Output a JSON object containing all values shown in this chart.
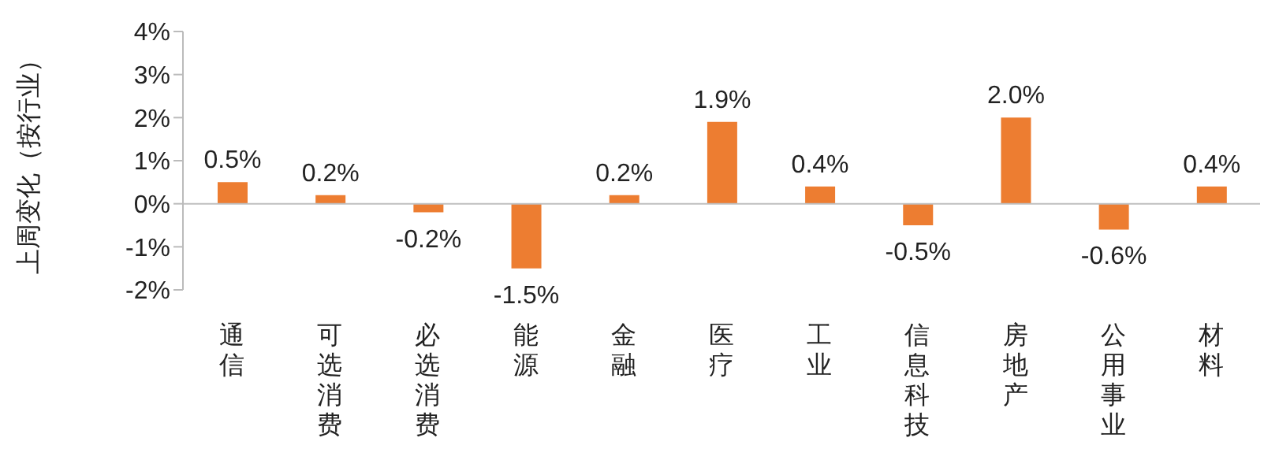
{
  "chart_data": {
    "type": "bar",
    "ylabel": "上周变化（按行业）",
    "categories": [
      "通信",
      "可选消费",
      "必选消费",
      "能源",
      "金融",
      "医疗",
      "工业",
      "信息科技",
      "房地产",
      "公用事业",
      "材料"
    ],
    "values": [
      0.5,
      0.2,
      -0.2,
      -1.5,
      0.2,
      1.9,
      0.4,
      -0.5,
      2.0,
      -0.6,
      0.4
    ],
    "value_labels": [
      "0.5%",
      "0.2%",
      "-0.2%",
      "-1.5%",
      "0.2%",
      "1.9%",
      "0.4%",
      "-0.5%",
      "2.0%",
      "-0.6%",
      "0.4%"
    ],
    "color": "#ed7d31",
    "ylim": [
      -2,
      4
    ],
    "yticks": [
      {
        "value": -2,
        "label": "-2%"
      },
      {
        "value": -1,
        "label": "-1%"
      },
      {
        "value": 0,
        "label": "0%"
      },
      {
        "value": 1,
        "label": "1%"
      },
      {
        "value": 2,
        "label": "2%"
      },
      {
        "value": 3,
        "label": "3%"
      },
      {
        "value": 4,
        "label": "4%"
      }
    ],
    "ref_lines": [
      {
        "axis": "y",
        "value": 0,
        "color": "#bfbfbf"
      }
    ],
    "grid": false,
    "legend": false
  }
}
